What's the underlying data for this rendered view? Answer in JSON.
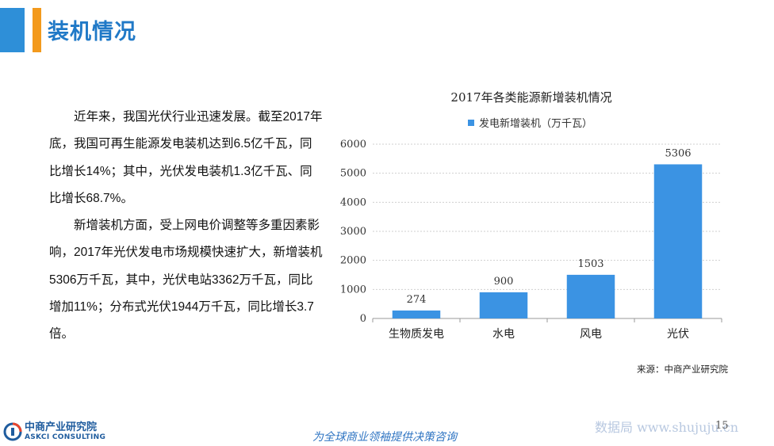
{
  "header": {
    "title": "装机情况"
  },
  "body": {
    "paragraph1": "近年来，我国光伏行业迅速发展。截至2017年底，我国可再生能源发电装机达到6.5亿千瓦，同比增长14%；其中，光伏发电装机1.3亿千瓦、同比增长68.7%。",
    "paragraph2": "新增装机方面，受上网电价调整等多重因素影响，2017年光伏发电市场规模快速扩大，新增装机5306万千瓦，其中，光伏电站3362万千瓦，同比增加11%；分布式光伏1944万千瓦，同比增长3.7倍。"
  },
  "chart_data": {
    "type": "bar",
    "title": "2017年各类能源新增装机情况",
    "categories": [
      "生物质发电",
      "水电",
      "风电",
      "光伏"
    ],
    "series": [
      {
        "name": "发电新增装机（万千瓦）",
        "values": [
          274,
          900,
          1503,
          5306
        ]
      }
    ],
    "ylim": [
      0,
      6000
    ],
    "yticks": [
      "0",
      "1000",
      "2000",
      "3000",
      "4000",
      "5000",
      "6000"
    ],
    "grid": true,
    "legend": "top",
    "bar_color": "#3b93e3"
  },
  "footer": {
    "source": "来源：中商产业研究院",
    "logo_cn": "中商产业研究院",
    "logo_en": "ASKCI CONSULTING",
    "slogan": "为全球商业领袖提供决策咨询",
    "watermark": "数据局 www.shujuju.cn",
    "page_number": "15"
  }
}
